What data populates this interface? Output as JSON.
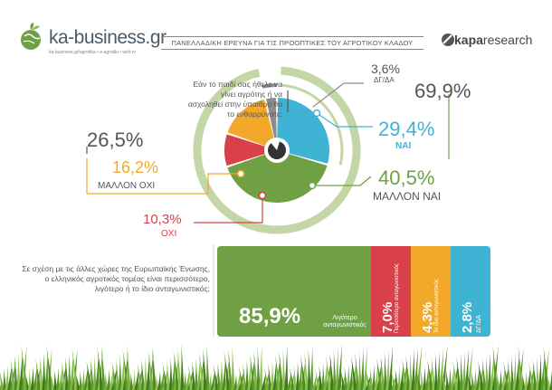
{
  "brand": {
    "logo_text": "ka-business.gr",
    "logo_sub": "ka-business.gr/agrotika • e-agrotiki • web tv",
    "research": "research",
    "research_brand": "kapa"
  },
  "title": "ΠΑΝΕΛΛΑΔΙΚΗ ΕΡΕΥΝΑ ΓΙΑ ΤΙΣ ΠΡΟΟΠΤΙΚΕΣ ΤΟΥ ΑΓΡΟΤΙΚΟΥ ΚΛΑΔΟΥ",
  "colors": {
    "green": "#6fa043",
    "light_green": "#c2d6a6",
    "blue": "#3fb3d3",
    "orange": "#f2a92b",
    "red": "#d9414a",
    "grey": "#8c8c8c",
    "dark": "#333333"
  },
  "chart_data": [
    {
      "type": "pie",
      "question": "Εάν το παιδί σας ήθελε να γίνει αγρότης ή να ασχοληθεί στην ύπαιθρο θα το ενθαρρύνατε;",
      "slices": [
        {
          "label": "ΝΑΙ",
          "value": 29.4,
          "display": "29,4%",
          "color": "#3fb3d3"
        },
        {
          "label": "ΜΑΛΛΟΝ ΝΑΙ",
          "value": 40.5,
          "display": "40,5%",
          "color": "#6fa043"
        },
        {
          "label": "ΟΧΙ",
          "value": 10.3,
          "display": "10,3%",
          "color": "#d9414a"
        },
        {
          "label": "ΜΑΛΛΟΝ ΟΧΙ",
          "value": 16.2,
          "display": "16,2%",
          "color": "#f2a92b"
        },
        {
          "label": "ΔΓ/ΔΑ",
          "value": 3.6,
          "display": "3,6%",
          "color": "#8c8c8c"
        }
      ],
      "totals": [
        {
          "value": 69.9,
          "display": "69,9%"
        },
        {
          "value": 26.5,
          "display": "26,5%"
        }
      ]
    },
    {
      "type": "bar",
      "question": "Σε σχέση με τις άλλες χώρες της Ευρωπαϊκής Ένωσης, ο ελληνικός αγροτικός τομέας είναι περισσότερο, λιγότερο ή το ίδιο ανταγωνιστικός;",
      "stacked": true,
      "categories": [
        "Λιγότερο ανταγωνιστικός",
        "Περισσότερο ανταγωνιστικός",
        "Το ίδιο ανταγωνιστικός",
        "ΔΓ/ΔΑ"
      ],
      "values": [
        85.9,
        7.0,
        4.3,
        2.8
      ],
      "display": [
        "85,9%",
        "7,0%",
        "4,3%",
        "2,8%"
      ],
      "colors": [
        "#6fa043",
        "#d9414a",
        "#f2a92b",
        "#3fb3d3"
      ]
    }
  ]
}
